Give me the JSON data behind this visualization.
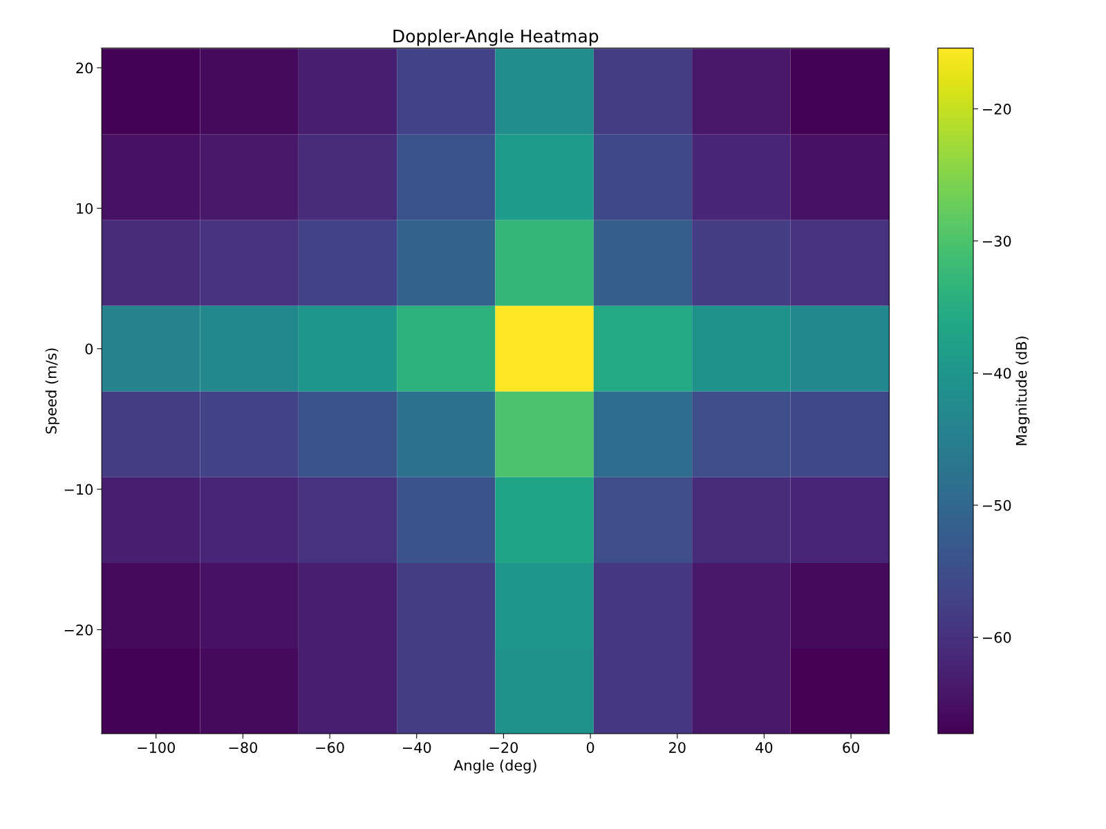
{
  "chart_data": {
    "type": "heatmap",
    "title": "Doppler-Angle Heatmap",
    "xlabel": "Angle (deg)",
    "ylabel": "Speed (m/s)",
    "clabel": "Magnitude (dB)",
    "x": [
      -101.2,
      -78.5,
      -55.9,
      -33.2,
      -10.6,
      12.1,
      34.7,
      57.4
    ],
    "y": [
      18.3,
      12.2,
      6.1,
      0,
      -6.1,
      -12.2,
      -18.3,
      -24.4
    ],
    "xlim": [
      -112.5,
      68.8
    ],
    "ylim": [
      -27.4,
      21.4
    ],
    "xticks": [
      {
        "value": -100,
        "label": "−100"
      },
      {
        "value": -80,
        "label": "−80"
      },
      {
        "value": -60,
        "label": "−60"
      },
      {
        "value": -40,
        "label": "−40"
      },
      {
        "value": -20,
        "label": "−20"
      },
      0,
      20,
      40,
      60
    ],
    "yticks": [
      {
        "value": -20,
        "label": "−20"
      },
      {
        "value": -10,
        "label": "−10"
      },
      0,
      10,
      20
    ],
    "clim": [
      -67.3,
      -15.4
    ],
    "cticks": [
      {
        "value": -60,
        "label": "−60"
      },
      {
        "value": -50,
        "label": "−50"
      },
      {
        "value": -40,
        "label": "−40"
      },
      {
        "value": -30,
        "label": "−30"
      },
      {
        "value": -20,
        "label": "−20"
      }
    ],
    "cells": [
      [
        -67,
        -66,
        -63,
        -57,
        -42,
        -58,
        -64,
        -67
      ],
      [
        -65,
        -64,
        -61,
        -54,
        -39,
        -56,
        -62,
        -65
      ],
      [
        -61,
        -60,
        -57,
        -51,
        -33,
        -52,
        -58,
        -60
      ],
      [
        -44,
        -43,
        -40,
        -34,
        -15.4,
        -36,
        -41,
        -43
      ],
      [
        -58,
        -57,
        -54,
        -48,
        -30,
        -49,
        -55,
        -56
      ],
      [
        -63,
        -62,
        -60,
        -54,
        -37,
        -55,
        -61,
        -62
      ],
      [
        -66,
        -65,
        -63,
        -58,
        -40,
        -59,
        -64,
        -66
      ],
      [
        -67,
        -66,
        -63,
        -58,
        -41,
        -59,
        -64,
        -67.3
      ]
    ],
    "grid": false
  }
}
